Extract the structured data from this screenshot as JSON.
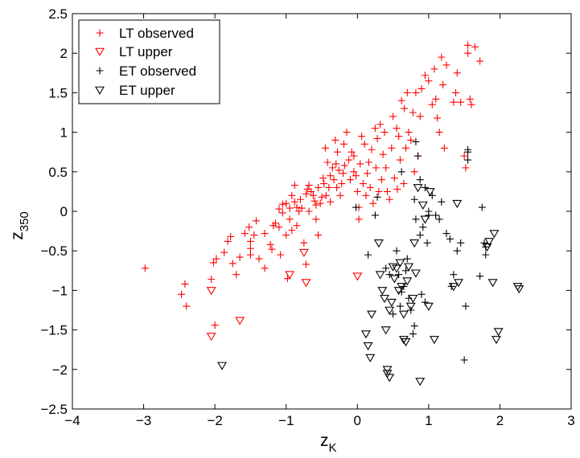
{
  "chart_data": {
    "type": "scatter",
    "title": "",
    "xlabel": "z",
    "xlabel_subscript": "K",
    "ylabel": "z",
    "ylabel_subscript": "350",
    "xlim": [
      -4,
      3
    ],
    "ylim": [
      -2.5,
      2.5
    ],
    "xticks": [
      -4,
      -3,
      -2,
      -1,
      0,
      1,
      2,
      3
    ],
    "yticks": [
      -2.5,
      -2,
      -1.5,
      -1,
      -0.5,
      0,
      0.5,
      1,
      1.5,
      2,
      2.5
    ],
    "xtick_labels": [
      "−4",
      "−3",
      "−2",
      "−1",
      "0",
      "1",
      "2",
      "3"
    ],
    "ytick_labels": [
      "−2.5",
      "−2",
      "−1.5",
      "−1",
      "−0.5",
      "0",
      "0.5",
      "1",
      "1.5",
      "2",
      "2.5"
    ],
    "grid": false,
    "legend_position": "top-left",
    "series": [
      {
        "name": "LT observed",
        "marker": "plus",
        "color": "#ff0000",
        "points": [
          [
            -2.98,
            -0.72
          ],
          [
            -2.47,
            -1.05
          ],
          [
            -2.42,
            -0.92
          ],
          [
            -2.4,
            -1.2
          ],
          [
            -2.05,
            -0.86
          ],
          [
            -2.02,
            -0.65
          ],
          [
            -1.98,
            -0.6
          ],
          [
            -2.0,
            -1.44
          ],
          [
            -1.87,
            -0.52
          ],
          [
            -1.82,
            -0.38
          ],
          [
            -1.78,
            -0.32
          ],
          [
            -1.75,
            -0.66
          ],
          [
            -1.7,
            -0.8
          ],
          [
            -1.65,
            -0.58
          ],
          [
            -1.58,
            -0.28
          ],
          [
            -1.52,
            -0.2
          ],
          [
            -1.5,
            -0.55
          ],
          [
            -1.5,
            -0.47
          ],
          [
            -1.5,
            -0.38
          ],
          [
            -1.45,
            -0.3
          ],
          [
            -1.42,
            -0.12
          ],
          [
            -1.38,
            -0.6
          ],
          [
            -1.3,
            -0.72
          ],
          [
            -1.3,
            -0.28
          ],
          [
            -1.22,
            -0.42
          ],
          [
            -1.2,
            -0.48
          ],
          [
            -1.18,
            -0.18
          ],
          [
            -1.15,
            -0.15
          ],
          [
            -1.1,
            0.03
          ],
          [
            -1.1,
            -0.2
          ],
          [
            -1.08,
            -0.55
          ],
          [
            -1.05,
            0.09
          ],
          [
            -1.05,
            -0.02
          ],
          [
            -1.0,
            0.1
          ],
          [
            -1.0,
            -0.3
          ],
          [
            -0.98,
            -0.85
          ],
          [
            -0.95,
            0.04
          ],
          [
            -0.95,
            -0.1
          ],
          [
            -0.92,
            0.2
          ],
          [
            -0.92,
            -0.24
          ],
          [
            -0.88,
            0.33
          ],
          [
            -0.88,
            0.12
          ],
          [
            -0.85,
            0.05
          ],
          [
            -0.85,
            -0.18
          ],
          [
            -0.82,
            0.0
          ],
          [
            -0.8,
            0.15
          ],
          [
            -0.78,
            0.04
          ],
          [
            -0.75,
            -0.4
          ],
          [
            -0.72,
            0.22
          ],
          [
            -0.72,
            -0.67
          ],
          [
            -0.7,
            0.28
          ],
          [
            -0.68,
            0.33
          ],
          [
            -0.68,
            0.0
          ],
          [
            -0.65,
            0.25
          ],
          [
            -0.62,
            0.2
          ],
          [
            -0.6,
            0.13
          ],
          [
            -0.58,
            0.08
          ],
          [
            -0.58,
            -0.1
          ],
          [
            -0.55,
            0.3
          ],
          [
            -0.55,
            -0.3
          ],
          [
            -0.52,
            0.1
          ],
          [
            -0.5,
            0.18
          ],
          [
            -0.48,
            0.42
          ],
          [
            -0.47,
            0.35
          ],
          [
            -0.45,
            0.8
          ],
          [
            -0.44,
            0.2
          ],
          [
            -0.42,
            0.62
          ],
          [
            -0.4,
            0.3
          ],
          [
            -0.38,
            0.12
          ],
          [
            -0.38,
            0.45
          ],
          [
            -0.35,
            0.55
          ],
          [
            -0.33,
            0.4
          ],
          [
            -0.31,
            0.9
          ],
          [
            -0.3,
            0.6
          ],
          [
            -0.29,
            0.3
          ],
          [
            -0.28,
            0.75
          ],
          [
            -0.26,
            0.52
          ],
          [
            -0.24,
            0.2
          ],
          [
            -0.22,
            0.35
          ],
          [
            -0.2,
            0.48
          ],
          [
            -0.19,
            0.85
          ],
          [
            -0.18,
            0.58
          ],
          [
            -0.15,
            1.0
          ],
          [
            -0.12,
            0.65
          ],
          [
            -0.1,
            0.4
          ],
          [
            -0.08,
            0.75
          ],
          [
            -0.05,
            0.5
          ],
          [
            -0.05,
            0.7
          ],
          [
            -0.02,
            0.45
          ],
          [
            0.0,
            0.25
          ],
          [
            0.02,
            0.05
          ],
          [
            0.02,
            -0.1
          ],
          [
            0.04,
            0.6
          ],
          [
            0.06,
            0.95
          ],
          [
            0.08,
            0.35
          ],
          [
            0.1,
            0.85
          ],
          [
            0.12,
            0.2
          ],
          [
            0.14,
            0.48
          ],
          [
            0.16,
            0.62
          ],
          [
            0.18,
            0.3
          ],
          [
            0.2,
            0.78
          ],
          [
            0.22,
            0.1
          ],
          [
            0.25,
            1.05
          ],
          [
            0.26,
            0.55
          ],
          [
            0.28,
            0.92
          ],
          [
            0.3,
            0.25
          ],
          [
            0.32,
            1.1
          ],
          [
            0.34,
            0.4
          ],
          [
            0.36,
            0.72
          ],
          [
            0.38,
            1.0
          ],
          [
            0.4,
            0.55
          ],
          [
            0.42,
            0.25
          ],
          [
            0.45,
            0.15
          ],
          [
            0.48,
            0.8
          ],
          [
            0.5,
            1.2
          ],
          [
            0.52,
            0.42
          ],
          [
            0.55,
            1.05
          ],
          [
            0.56,
            0.28
          ],
          [
            0.58,
            0.95
          ],
          [
            0.6,
            0.65
          ],
          [
            0.62,
            1.4
          ],
          [
            0.65,
            0.35
          ],
          [
            0.66,
            1.3
          ],
          [
            0.68,
            0.8
          ],
          [
            0.7,
            1.5
          ],
          [
            0.72,
            1.0
          ],
          [
            0.75,
            0.9
          ],
          [
            0.78,
            1.25
          ],
          [
            0.8,
            0.5
          ],
          [
            0.82,
            1.5
          ],
          [
            0.85,
            0.7
          ],
          [
            0.88,
            1.2
          ],
          [
            0.9,
            1.55
          ],
          [
            0.95,
            1.72
          ],
          [
            1.0,
            1.65
          ],
          [
            1.05,
            1.35
          ],
          [
            1.08,
            1.8
          ],
          [
            1.1,
            1.42
          ],
          [
            1.12,
            1.18
          ],
          [
            1.15,
            1.0
          ],
          [
            1.18,
            1.95
          ],
          [
            1.2,
            1.6
          ],
          [
            1.22,
            0.8
          ],
          [
            1.25,
            1.85
          ],
          [
            1.35,
            1.38
          ],
          [
            1.38,
            1.5
          ],
          [
            1.4,
            1.75
          ],
          [
            1.45,
            1.38
          ],
          [
            1.5,
            0.7
          ],
          [
            1.52,
            0.55
          ],
          [
            1.55,
            2.1
          ],
          [
            1.55,
            2.0
          ],
          [
            1.58,
            1.42
          ],
          [
            1.6,
            1.35
          ],
          [
            1.65,
            2.08
          ],
          [
            1.72,
            1.9
          ]
        ]
      },
      {
        "name": "LT upper",
        "marker": "triangle-down",
        "color": "#ff0000",
        "points": [
          [
            -2.05,
            -1.0
          ],
          [
            -2.05,
            -1.58
          ],
          [
            -1.65,
            -1.38
          ],
          [
            -0.95,
            -0.8
          ],
          [
            -0.75,
            -0.52
          ],
          [
            -0.72,
            -0.9
          ],
          [
            0.0,
            -0.82
          ]
        ]
      },
      {
        "name": "ET observed",
        "marker": "plus",
        "color": "#000000",
        "points": [
          [
            -0.02,
            0.05
          ],
          [
            0.15,
            -0.55
          ],
          [
            0.25,
            -0.05
          ],
          [
            0.28,
            0.18
          ],
          [
            0.4,
            -0.72
          ],
          [
            0.45,
            -0.8
          ],
          [
            0.5,
            -1.3
          ],
          [
            0.55,
            -0.5
          ],
          [
            0.58,
            -0.8
          ],
          [
            0.6,
            -1.2
          ],
          [
            0.62,
            -1.02
          ],
          [
            0.62,
            0.5
          ],
          [
            0.65,
            -0.95
          ],
          [
            0.68,
            -0.75
          ],
          [
            0.7,
            -0.6
          ],
          [
            0.72,
            -1.1
          ],
          [
            0.75,
            -1.25
          ],
          [
            0.78,
            -1.55
          ],
          [
            0.8,
            -1.45
          ],
          [
            0.8,
            0.15
          ],
          [
            0.82,
            -0.1
          ],
          [
            0.82,
            0.88
          ],
          [
            0.85,
            0.7
          ],
          [
            0.88,
            0.4
          ],
          [
            0.88,
            -0.3
          ],
          [
            0.9,
            -1.05
          ],
          [
            0.92,
            -0.2
          ],
          [
            0.95,
            -1.15
          ],
          [
            0.95,
            0.3
          ],
          [
            0.98,
            -0.4
          ],
          [
            1.0,
            -0.05
          ],
          [
            1.0,
            0.0
          ],
          [
            1.05,
            0.2
          ],
          [
            1.1,
            -0.05
          ],
          [
            1.15,
            -0.1
          ],
          [
            1.18,
            0.12
          ],
          [
            1.25,
            -0.28
          ],
          [
            1.3,
            -0.35
          ],
          [
            1.32,
            -0.95
          ],
          [
            1.35,
            -0.8
          ],
          [
            1.4,
            -0.5
          ],
          [
            1.45,
            -0.4
          ],
          [
            1.5,
            -1.88
          ],
          [
            1.52,
            -1.2
          ],
          [
            1.55,
            0.65
          ],
          [
            1.55,
            0.75
          ],
          [
            1.55,
            0.78
          ],
          [
            1.72,
            -0.82
          ],
          [
            1.75,
            0.05
          ],
          [
            1.78,
            -0.4
          ],
          [
            1.8,
            -0.45
          ],
          [
            1.8,
            -0.55
          ]
        ]
      },
      {
        "name": "ET upper",
        "marker": "triangle-down",
        "color": "#000000",
        "points": [
          [
            -1.9,
            -1.95
          ],
          [
            0.12,
            -1.55
          ],
          [
            0.15,
            -1.7
          ],
          [
            0.18,
            -1.85
          ],
          [
            0.2,
            -1.3
          ],
          [
            0.3,
            -0.4
          ],
          [
            0.32,
            -0.8
          ],
          [
            0.35,
            -1.0
          ],
          [
            0.38,
            -1.1
          ],
          [
            0.4,
            -1.5
          ],
          [
            0.42,
            -2.0
          ],
          [
            0.42,
            -2.05
          ],
          [
            0.45,
            -2.1
          ],
          [
            0.45,
            -1.25
          ],
          [
            0.48,
            -1.15
          ],
          [
            0.5,
            -0.7
          ],
          [
            0.52,
            -0.85
          ],
          [
            0.55,
            -0.72
          ],
          [
            0.58,
            -1.0
          ],
          [
            0.6,
            -0.65
          ],
          [
            0.62,
            -0.95
          ],
          [
            0.65,
            -1.3
          ],
          [
            0.65,
            -1.62
          ],
          [
            0.68,
            -1.65
          ],
          [
            0.7,
            -0.88
          ],
          [
            0.72,
            -0.7
          ],
          [
            0.75,
            -1.2
          ],
          [
            0.78,
            -1.1
          ],
          [
            0.8,
            -0.4
          ],
          [
            0.82,
            -0.78
          ],
          [
            0.85,
            0.3
          ],
          [
            0.88,
            -2.15
          ],
          [
            0.92,
            0.08
          ],
          [
            0.95,
            -0.1
          ],
          [
            1.0,
            -1.2
          ],
          [
            1.02,
            0.25
          ],
          [
            1.08,
            -1.62
          ],
          [
            1.35,
            -0.95
          ],
          [
            1.4,
            0.1
          ],
          [
            1.42,
            -0.9
          ],
          [
            1.82,
            -0.45
          ],
          [
            1.85,
            -0.38
          ],
          [
            1.9,
            -0.9
          ],
          [
            1.92,
            -0.28
          ],
          [
            1.95,
            -1.62
          ],
          [
            1.98,
            -1.52
          ],
          [
            2.25,
            -0.95
          ],
          [
            2.27,
            -0.98
          ]
        ]
      }
    ]
  }
}
